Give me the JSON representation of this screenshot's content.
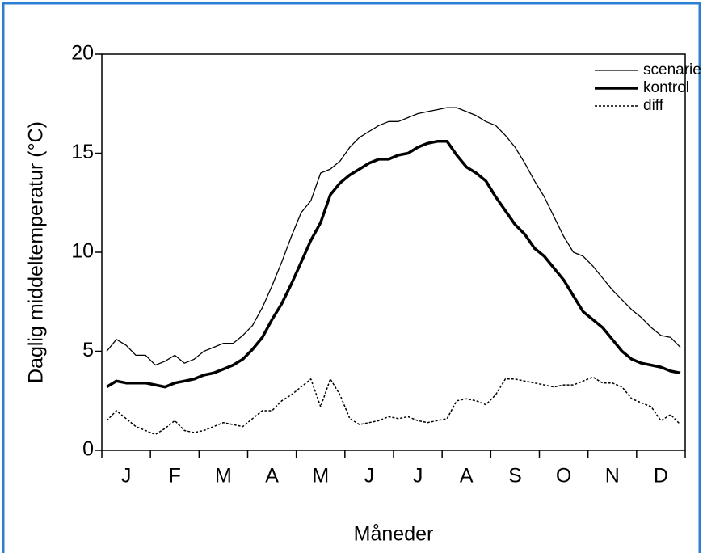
{
  "chart_data": {
    "type": "line",
    "y_label": "Daglig middeltemperatur (°C)",
    "x_label": "Måneder",
    "categories": [
      null,
      null,
      "J",
      null,
      null,
      null,
      null,
      "F",
      null,
      null,
      null,
      null,
      "M",
      null,
      null,
      null,
      null,
      "A",
      null,
      null,
      null,
      null,
      "M",
      null,
      null,
      null,
      null,
      "J",
      null,
      null,
      null,
      null,
      "J",
      null,
      null,
      null,
      null,
      "A",
      null,
      null,
      null,
      null,
      "S",
      null,
      null,
      null,
      null,
      "O",
      null,
      null,
      null,
      null,
      "N",
      null,
      null,
      null,
      null,
      "D",
      null,
      null
    ],
    "series": [
      {
        "name": "scenarie",
        "color": "#000000",
        "linestyle": "solid",
        "values": [
          5.0,
          5.6,
          5.3,
          4.8,
          4.8,
          4.3,
          4.5,
          4.8,
          4.4,
          4.6,
          5.0,
          5.2,
          5.4,
          5.4,
          5.8,
          6.3,
          7.2,
          8.3,
          9.5,
          10.8,
          12.0,
          12.6,
          14.0,
          14.2,
          14.6,
          15.3,
          15.8,
          16.1,
          16.4,
          16.6,
          16.6,
          16.8,
          17.0,
          17.1,
          17.2,
          17.3,
          17.3,
          17.1,
          16.9,
          16.6,
          16.4,
          15.9,
          15.3,
          14.5,
          13.6,
          12.8,
          11.8,
          10.8,
          10.0,
          9.8,
          9.3,
          8.7,
          8.1,
          7.6,
          7.1,
          6.7,
          6.2,
          5.8,
          5.7,
          5.2
        ]
      },
      {
        "name": "kontrol",
        "color": "#000000",
        "linestyle": "solid",
        "values": [
          3.2,
          3.5,
          3.4,
          3.4,
          3.4,
          3.3,
          3.2,
          3.4,
          3.5,
          3.6,
          3.8,
          3.9,
          4.1,
          4.3,
          4.6,
          5.1,
          5.7,
          6.6,
          7.4,
          8.4,
          9.5,
          10.6,
          11.5,
          12.9,
          13.5,
          13.9,
          14.2,
          14.5,
          14.7,
          14.7,
          14.9,
          15.0,
          15.3,
          15.5,
          15.6,
          15.6,
          14.9,
          14.3,
          14.0,
          13.6,
          12.8,
          12.1,
          11.4,
          10.9,
          10.2,
          9.8,
          9.2,
          8.6,
          7.8,
          7.0,
          6.6,
          6.2,
          5.6,
          5.0,
          4.6,
          4.4,
          4.3,
          4.2,
          4.0,
          3.9
        ]
      },
      {
        "name": "diff",
        "color": "#000000",
        "linestyle": "dotted",
        "values": [
          1.5,
          2.0,
          1.6,
          1.2,
          1.0,
          0.8,
          1.1,
          1.5,
          1.0,
          0.9,
          1.0,
          1.2,
          1.4,
          1.3,
          1.2,
          1.6,
          2.0,
          2.0,
          2.5,
          2.8,
          3.2,
          3.6,
          2.2,
          3.6,
          2.8,
          1.6,
          1.3,
          1.4,
          1.5,
          1.7,
          1.6,
          1.7,
          1.5,
          1.4,
          1.5,
          1.6,
          2.5,
          2.6,
          2.5,
          2.3,
          2.8,
          3.6,
          3.6,
          3.5,
          3.4,
          3.3,
          3.2,
          3.3,
          3.3,
          3.5,
          3.7,
          3.4,
          3.4,
          3.2,
          2.6,
          2.4,
          2.2,
          1.5,
          1.8,
          1.3
        ]
      }
    ],
    "ylim": [
      0,
      20
    ],
    "yticks": [
      0,
      5,
      10,
      15,
      20
    ],
    "grid": false,
    "legend": "upper right"
  }
}
